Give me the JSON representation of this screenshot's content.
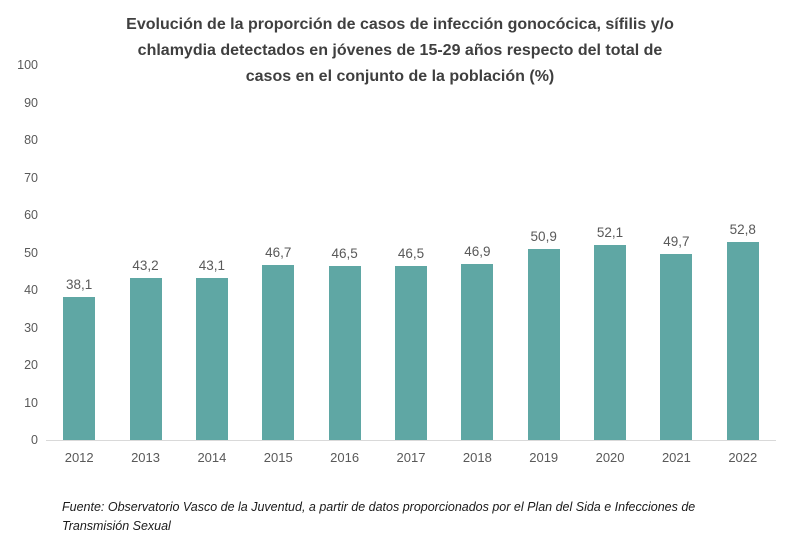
{
  "chart_data": {
    "type": "bar",
    "title": "Evolución de la proporción de casos de infección gonocócica, sífilis y/o\nchlamydia detectados en jóvenes de 15-29 años respecto del total de\ncasos en el conjunto de la población (%)",
    "categories": [
      "2012",
      "2013",
      "2014",
      "2015",
      "2016",
      "2017",
      "2018",
      "2019",
      "2020",
      "2021",
      "2022"
    ],
    "values": [
      38.1,
      43.2,
      43.1,
      46.7,
      46.5,
      46.5,
      46.9,
      50.9,
      52.1,
      49.7,
      52.8
    ],
    "value_labels": [
      "38,1",
      "43,2",
      "43,1",
      "46,7",
      "46,5",
      "46,5",
      "46,9",
      "50,9",
      "52,1",
      "49,7",
      "52,8"
    ],
    "xlabel": "",
    "ylabel": "",
    "ylim": [
      0,
      100
    ],
    "yticks": [
      0,
      10,
      20,
      30,
      40,
      50,
      60,
      70,
      80,
      90,
      100
    ],
    "grid": false,
    "legend": "none",
    "colors": {
      "bar": "#5fa7a4",
      "axis_line": "#d9d9d9",
      "tick_label": "#595959",
      "title": "#3f3f3f"
    }
  },
  "source": {
    "text": "Fuente: Observatorio Vasco de la Juventud, a partir de datos proporcionados por el Plan del Sida e Infecciones de\nTransmisión Sexual"
  }
}
